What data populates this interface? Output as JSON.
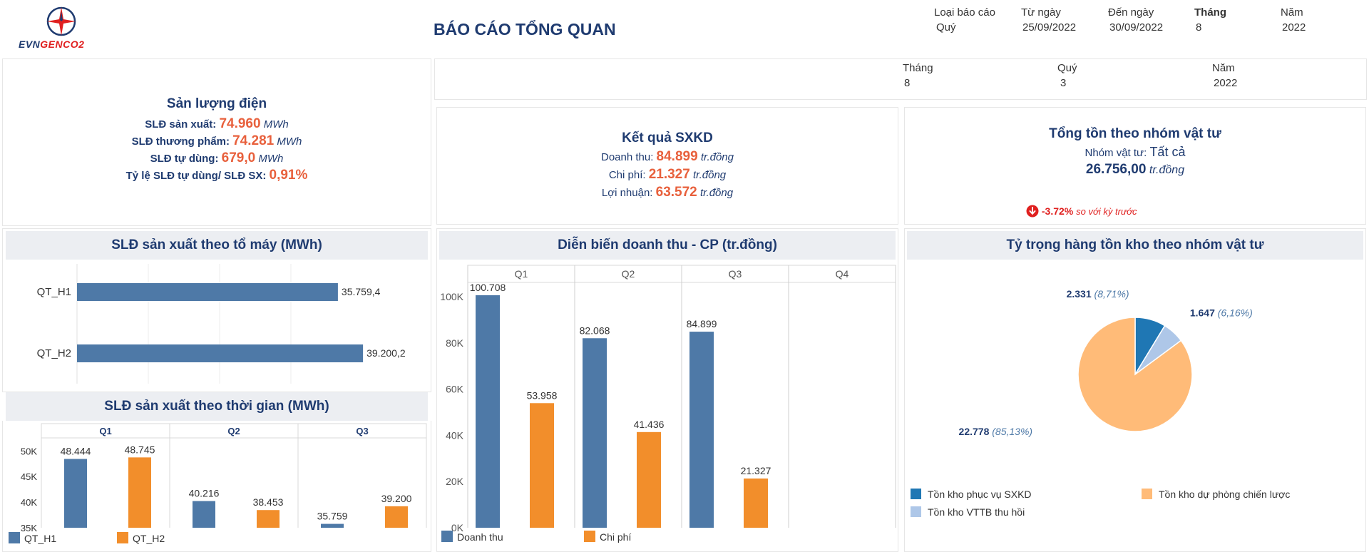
{
  "colors": {
    "blue": "#4e79a7",
    "orange": "#f28e2b",
    "navy": "#1f3b70",
    "accent_red": "#e8603c",
    "pie_dark_blue": "#1f77b4",
    "pie_light_blue": "#aec7e8",
    "pie_light_orange": "#ffbb78"
  },
  "header": {
    "logo_text_a": "EVN",
    "logo_text_b": "GENCO2",
    "title": "BÁO CÁO TỔNG QUAN",
    "filters": [
      {
        "label": "Loại báo cáo",
        "value": "Quý"
      },
      {
        "label": "Từ ngày",
        "value": "25/09/2022"
      },
      {
        "label": "Đến ngày",
        "value": "30/09/2022"
      },
      {
        "label": "Tháng",
        "value": "8"
      },
      {
        "label": "Năm",
        "value": "2022"
      }
    ]
  },
  "period_bar": [
    {
      "label": "Tháng",
      "value": "8"
    },
    {
      "label": "Quý",
      "value": "3"
    },
    {
      "label": "Năm",
      "value": "2022"
    }
  ],
  "san_luong": {
    "title": "Sản lượng điện",
    "rows": [
      {
        "label": "SLĐ sản xuất:",
        "value": "74.960",
        "unit": "MWh"
      },
      {
        "label": "SLĐ thương phẩm:",
        "value": "74.281",
        "unit": "MWh"
      },
      {
        "label": "SLĐ tự dùng:",
        "value": "679,0",
        "unit": "MWh"
      },
      {
        "label": "Tỷ lệ SLĐ tự dùng/ SLĐ SX:",
        "value": "0,91%",
        "unit": ""
      }
    ]
  },
  "ket_qua": {
    "title": "Kết quả SXKD",
    "rows": [
      {
        "label": "Doanh thu:",
        "value": "84.899",
        "unit": "tr.đồng"
      },
      {
        "label": "Chi phí:",
        "value": "21.327",
        "unit": "tr.đồng"
      },
      {
        "label": "Lợi nhuận:",
        "value": "63.572",
        "unit": "tr.đồng"
      }
    ]
  },
  "ton_kho": {
    "title": "Tổng tồn theo nhóm vật tư",
    "group_label": "Nhóm vật tư:",
    "group_value": "Tất cả",
    "total": "26.756,00",
    "unit": "tr.đồng",
    "change": "-3.72%",
    "change_note": "so với kỳ trước",
    "down_icon": "down-arrow-icon"
  },
  "chart_data": [
    {
      "type": "bar",
      "orientation": "horizontal",
      "title": "SLĐ sản xuất theo tổ máy (MWh)",
      "categories": [
        "QT_H1",
        "QT_H2"
      ],
      "values": [
        35759.4,
        39200.2
      ],
      "value_labels": [
        "35.759,4",
        "39.200,2"
      ]
    },
    {
      "type": "bar",
      "title": "SLĐ sản xuất theo thời gian (MWh)",
      "panels": [
        "Q1",
        "Q2",
        "Q3"
      ],
      "series": [
        {
          "name": "QT_H1",
          "values": [
            48444,
            40216,
            35759
          ],
          "labels": [
            "48.444",
            "40.216",
            "35.759"
          ]
        },
        {
          "name": "QT_H2",
          "values": [
            48745,
            38453,
            39200
          ],
          "labels": [
            "48.745",
            "38.453",
            "39.200"
          ]
        }
      ],
      "ylim": [
        35000,
        52000
      ],
      "yticks": [
        35000,
        40000,
        45000,
        50000
      ],
      "ytick_labels": [
        "35K",
        "40K",
        "45K",
        "50K"
      ],
      "legend": "bottom-left"
    },
    {
      "type": "bar",
      "title": "Diễn biến doanh thu - CP (tr.đồng)",
      "panels": [
        "Q1",
        "Q2",
        "Q3",
        "Q4"
      ],
      "series": [
        {
          "name": "Doanh thu",
          "values": [
            100708,
            82068,
            84899,
            null
          ],
          "labels": [
            "100.708",
            "82.068",
            "84.899",
            ""
          ]
        },
        {
          "name": "Chi phí",
          "values": [
            53958,
            41436,
            21327,
            null
          ],
          "labels": [
            "53.958",
            "41.436",
            "21.327",
            ""
          ]
        }
      ],
      "ylim": [
        0,
        105000
      ],
      "yticks": [
        0,
        20000,
        40000,
        60000,
        80000,
        100000
      ],
      "ytick_labels": [
        "0K",
        "20K",
        "40K",
        "60K",
        "80K",
        "100K"
      ],
      "legend": "bottom-left"
    },
    {
      "type": "pie",
      "title": "Tỷ trọng hàng tồn kho theo nhóm vật tư",
      "slices": [
        {
          "name": "Tồn kho phục vụ SXKD",
          "value": 2331,
          "label": "2.331",
          "pct": "(8,71%)",
          "color": "#1f77b4"
        },
        {
          "name": "Tồn kho VTTB thu hồi",
          "value": 1647,
          "label": "1.647",
          "pct": "(6,16%)",
          "color": "#aec7e8"
        },
        {
          "name": "Tồn kho dự phòng chiến lược",
          "value": 22778,
          "label": "22.778",
          "pct": "(85,13%)",
          "color": "#ffbb78"
        }
      ],
      "legend": "bottom"
    }
  ]
}
